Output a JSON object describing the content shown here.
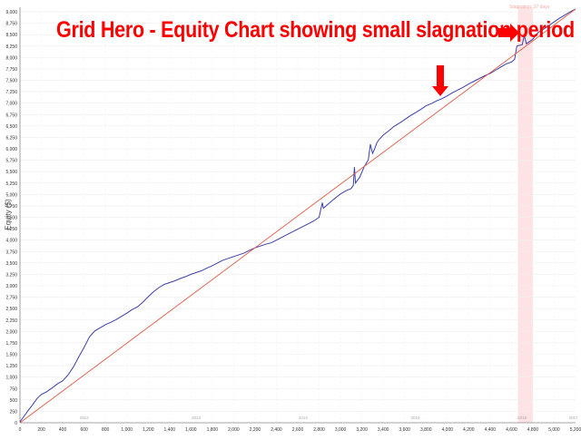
{
  "headline": "Grid Hero - Equity Chart showing small slagnation period",
  "stagnation_label": "Stagnation: 37 days",
  "chart_data": {
    "type": "line",
    "ylabel": "Equity ($)",
    "xlabel": "",
    "xlim": [
      0,
      5200
    ],
    "ylim": [
      0,
      9100
    ],
    "x_ticks": [
      0,
      200,
      400,
      600,
      800,
      1000,
      1200,
      1400,
      1600,
      1800,
      2000,
      2200,
      2400,
      2600,
      2800,
      3000,
      3200,
      3400,
      3600,
      3800,
      4000,
      4200,
      4400,
      4600,
      4800,
      5000,
      5200
    ],
    "x_tick_labels": [
      "0",
      "200",
      "400",
      "600",
      "800",
      "1,000",
      "1,200",
      "1,400",
      "1,600",
      "1,800",
      "2,000",
      "2,200",
      "2,400",
      "2,600",
      "2,800",
      "3,000",
      "3,200",
      "3,400",
      "3,600",
      "3,800",
      "4,000",
      "4,200",
      "4,400",
      "4,600",
      "4,800",
      "5,000",
      "5,200"
    ],
    "y_ticks": [
      0,
      250,
      500,
      750,
      1000,
      1250,
      1500,
      1750,
      2000,
      2250,
      2500,
      2750,
      3000,
      3250,
      3500,
      3750,
      4000,
      4250,
      4500,
      4750,
      5000,
      5250,
      5500,
      5750,
      6000,
      6250,
      6500,
      6750,
      7000,
      7250,
      7500,
      7750,
      8000,
      8250,
      8500,
      8750,
      9000
    ],
    "y_tick_labels": [
      "0",
      "250",
      "500",
      "750",
      "1,000",
      "1,250",
      "1,500",
      "1,750",
      "2,000",
      "2,250",
      "2,500",
      "2,750",
      "3,000",
      "3,250",
      "3,500",
      "3,750",
      "4,000",
      "4,250",
      "4,500",
      "4,750",
      "5,000",
      "5,250",
      "5,500",
      "5,750",
      "6,000",
      "6,250",
      "6,500",
      "6,750",
      "7,000",
      "7,250",
      "7,500",
      "7,750",
      "8,000",
      "8,250",
      "8,500",
      "8,750",
      "9,000"
    ],
    "year_markers": [
      {
        "x": 600,
        "label": "2012"
      },
      {
        "x": 1650,
        "label": "2013"
      },
      {
        "x": 2650,
        "label": "2014"
      },
      {
        "x": 3700,
        "label": "2015"
      },
      {
        "x": 4700,
        "label": "2016"
      },
      {
        "x": 5180,
        "label": "2017"
      }
    ],
    "stagnation": {
      "x_start": 4660,
      "x_end": 4800
    },
    "grid": true,
    "series": [
      {
        "color": "#3b3fa8",
        "x": [
          0,
          40,
          80,
          120,
          160,
          200,
          250,
          300,
          350,
          400,
          450,
          500,
          550,
          600,
          650,
          700,
          750,
          800,
          850,
          900,
          950,
          1000,
          1050,
          1100,
          1150,
          1200,
          1250,
          1300,
          1350,
          1400,
          1450,
          1500,
          1550,
          1600,
          1650,
          1700,
          1750,
          1800,
          1850,
          1900,
          1950,
          2000,
          2050,
          2100,
          2150,
          2200,
          2250,
          2300,
          2350,
          2400,
          2450,
          2500,
          2550,
          2600,
          2650,
          2700,
          2750,
          2800,
          2820,
          2830,
          2840,
          2900,
          2950,
          3000,
          3050,
          3100,
          3120,
          3130,
          3140,
          3180,
          3220,
          3260,
          3280,
          3300,
          3320,
          3340,
          3360,
          3400,
          3450,
          3500,
          3550,
          3600,
          3650,
          3700,
          3750,
          3800,
          3850,
          3900,
          3950,
          4000,
          4050,
          4100,
          4150,
          4200,
          4250,
          4300,
          4350,
          4400,
          4450,
          4500,
          4550,
          4600,
          4630,
          4650,
          4700,
          4720,
          4740,
          4800,
          4850,
          4900,
          4950,
          5000,
          5050,
          5100,
          5150,
          5200
        ],
        "y": [
          20,
          150,
          280,
          400,
          530,
          620,
          680,
          760,
          850,
          920,
          1050,
          1220,
          1440,
          1650,
          1880,
          2010,
          2080,
          2150,
          2200,
          2260,
          2330,
          2400,
          2480,
          2540,
          2640,
          2760,
          2870,
          2960,
          3030,
          3070,
          3110,
          3160,
          3200,
          3250,
          3290,
          3330,
          3390,
          3440,
          3500,
          3560,
          3600,
          3640,
          3680,
          3720,
          3780,
          3830,
          3870,
          3910,
          3940,
          4000,
          4060,
          4120,
          4180,
          4240,
          4300,
          4360,
          4420,
          4500,
          4720,
          4820,
          4700,
          4820,
          4920,
          5010,
          5080,
          5130,
          5200,
          5600,
          5250,
          5380,
          5600,
          5760,
          6100,
          5900,
          6000,
          6130,
          6200,
          6300,
          6390,
          6490,
          6560,
          6640,
          6720,
          6790,
          6860,
          6940,
          6990,
          7050,
          7100,
          7160,
          7230,
          7290,
          7350,
          7420,
          7480,
          7540,
          7600,
          7650,
          7720,
          7790,
          7860,
          7900,
          7960,
          8250,
          8280,
          8480,
          8300,
          8400,
          8550,
          8620,
          8700,
          8780,
          8860,
          8930,
          9000,
          9060
        ]
      },
      {
        "color": "#e05a45",
        "x": [
          0,
          5200
        ],
        "y": [
          0,
          9060
        ]
      }
    ]
  }
}
